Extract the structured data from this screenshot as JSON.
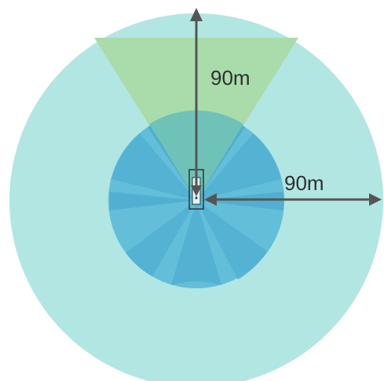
{
  "labels": {
    "forward_range": "90m",
    "side_range": "90m"
  },
  "colors": {
    "outer_zone": "#b2e6e3",
    "forward_sector": "#a9dcaa",
    "inner_zone": "#63bfd9",
    "inner_zone_dark": "#4faed0",
    "overlap": "#6fc2b8",
    "arrow": "#555555",
    "vehicle_outline": "#333333"
  },
  "diagram": {
    "outer_range_m": 90,
    "forward_range_m": 90,
    "forward_sector_angle_deg": 60
  }
}
